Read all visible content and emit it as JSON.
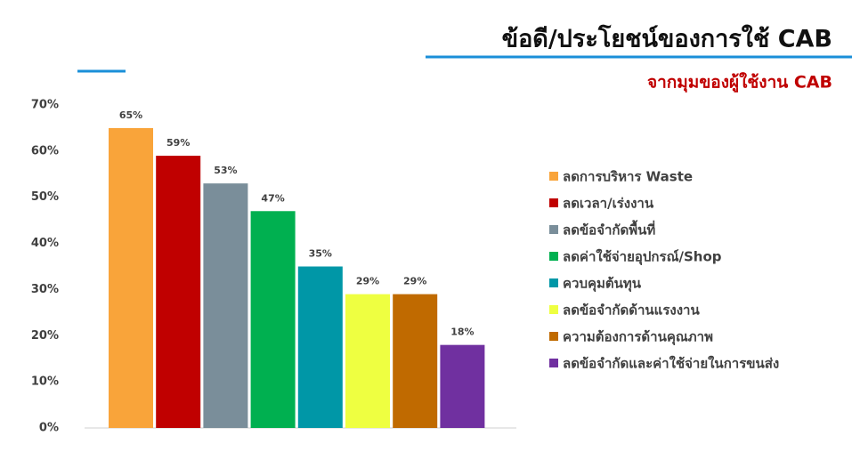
{
  "chart_data": {
    "type": "bar",
    "title": "ข้อดี/ประโยชน์ของการใช้ CAB",
    "subtitle": "จากมุมของผู้ใช้งาน CAB",
    "categories": [
      "ลดการบริหาร Waste",
      "ลดเวลา/เร่งงาน",
      "ลดข้อจำกัดพื้นที่",
      "ลดค่าใช้จ่ายอุปกรณ์/Shop",
      "ควบคุมต้นทุน",
      "ลดข้อจำกัดด้านแรงงาน",
      "ความต้องการด้านคุณภาพ",
      "ลดข้อจำกัดและค่าใช้จ่ายในการขนส่ง"
    ],
    "values": [
      65,
      59,
      53,
      47,
      35,
      29,
      29,
      18
    ],
    "value_labels": [
      "65%",
      "59%",
      "53%",
      "47%",
      "35%",
      "29%",
      "29%",
      "18%"
    ],
    "colors": [
      "#f9a43a",
      "#c00000",
      "#7a8e9a",
      "#00b050",
      "#0097a7",
      "#eeff41",
      "#c06a00",
      "#7030a0"
    ],
    "ylim": [
      0,
      70
    ],
    "yticks": [
      {
        "value": 0,
        "label": "0%"
      },
      {
        "value": 10,
        "label": "10%"
      },
      {
        "value": 20,
        "label": "20%"
      },
      {
        "value": 30,
        "label": "30%"
      },
      {
        "value": 40,
        "label": "40%"
      },
      {
        "value": 50,
        "label": "50%"
      },
      {
        "value": 60,
        "label": "60%"
      },
      {
        "value": 70,
        "label": "70%"
      }
    ],
    "grid": false,
    "legend": "right"
  }
}
